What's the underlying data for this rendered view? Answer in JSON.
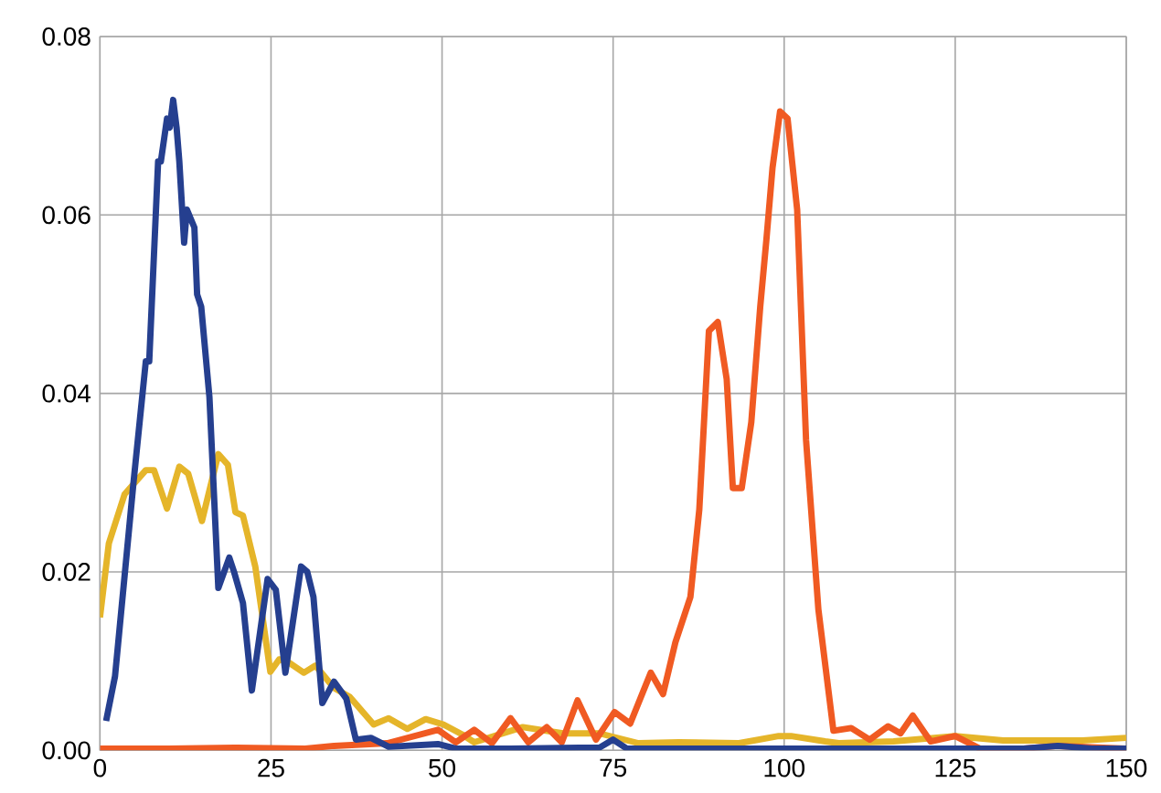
{
  "chart_data": {
    "type": "line",
    "xlim": [
      0,
      150
    ],
    "xticks": [
      0,
      25,
      50,
      75,
      100,
      125,
      150
    ],
    "ylim": [
      0,
      0.08
    ],
    "yticks": [
      {
        "value": 0,
        "label": "0.00"
      },
      {
        "value": 0.02,
        "label": "0.02"
      },
      {
        "value": 0.04,
        "label": "0.04"
      },
      {
        "value": 0.06,
        "label": "0.06"
      },
      {
        "value": 0.08,
        "label": "0.08"
      }
    ],
    "grid": true,
    "legend": false,
    "marker": "none",
    "line_style": "solid",
    "series": [
      {
        "color": "#e5b52a",
        "x": [
          0,
          1.3,
          3.6,
          6.7,
          7.9,
          9.8,
          11.6,
          12.9,
          14.9,
          17.3,
          18.7,
          19.8,
          20.9,
          22.7,
          24.9,
          26.2,
          27.5,
          29.8,
          31.5,
          34.2,
          36.5,
          40,
          42.2,
          44.9,
          47.6,
          50.2,
          52.9,
          54.7,
          61.8,
          67.7,
          73,
          78.7,
          84.6,
          93.4,
          99.2,
          101,
          106,
          108,
          116,
          125,
          132,
          138,
          143.6,
          150
        ],
        "values": [
          0.0149,
          0.0232,
          0.0287,
          0.0314,
          0.0314,
          0.0271,
          0.0318,
          0.031,
          0.0257,
          0.0332,
          0.032,
          0.0267,
          0.0263,
          0.0206,
          0.0088,
          0.0102,
          0.0099,
          0.0087,
          0.0095,
          0.007,
          0.006,
          0.0029,
          0.0036,
          0.0024,
          0.0035,
          0.0029,
          0.0018,
          0.0009,
          0.0026,
          0.0019,
          0.0019,
          0.0008,
          0.0009,
          0.0008,
          0.0016,
          0.0016,
          0.001,
          0.0008,
          0.001,
          0.0016,
          0.0011,
          0.0011,
          0.0011,
          0.0014
        ]
      },
      {
        "color": "#f05a22",
        "x": [
          0,
          10,
          20,
          30,
          34.2,
          42,
          49.4,
          52,
          54.7,
          57.3,
          60,
          62.6,
          65.3,
          67.5,
          69.8,
          72.5,
          75.2,
          77.5,
          80.5,
          82.3,
          84.1,
          86.3,
          87.6,
          89,
          90.3,
          91.6,
          92.5,
          93.8,
          95.2,
          96.5,
          97.4,
          98.3,
          99.4,
          100.5,
          101.9,
          103.2,
          105,
          107.2,
          109.8,
          112.5,
          115.2,
          117,
          118.8,
          121.4,
          125,
          128.6,
          135,
          140,
          150
        ],
        "values": [
          0.0002,
          0.0002,
          0.0003,
          0.0002,
          0.0005,
          0.0008,
          0.0023,
          0.0009,
          0.0023,
          0.0008,
          0.0036,
          0.0009,
          0.0026,
          0.0009,
          0.0056,
          0.0012,
          0.0043,
          0.003,
          0.0087,
          0.0063,
          0.0121,
          0.0172,
          0.027,
          0.047,
          0.048,
          0.0416,
          0.0294,
          0.0294,
          0.0368,
          0.0497,
          0.0572,
          0.0653,
          0.0716,
          0.0708,
          0.0606,
          0.0348,
          0.0158,
          0.0022,
          0.0025,
          0.0012,
          0.0027,
          0.0019,
          0.0039,
          0.001,
          0.0016,
          0.0002,
          0.0002,
          0.0005,
          0.0002
        ]
      },
      {
        "color": "#253f8f",
        "x": [
          0.9,
          2.2,
          4.9,
          6.7,
          7.2,
          8.5,
          8.9,
          9.8,
          10.2,
          10.7,
          11.2,
          11.6,
          12.3,
          12.7,
          13.8,
          14.2,
          14.8,
          16,
          17.3,
          18.9,
          19.6,
          20.9,
          22.2,
          24.5,
          25.7,
          27.1,
          29.4,
          30.3,
          31.2,
          32.5,
          34.2,
          36,
          37.4,
          39.6,
          42.2,
          49.4,
          52,
          60,
          70,
          73,
          75,
          77,
          85,
          100,
          120,
          135,
          140,
          145,
          150
        ],
        "values": [
          0.0033,
          0.0083,
          0.03,
          0.0436,
          0.0436,
          0.066,
          0.066,
          0.0708,
          0.0698,
          0.0729,
          0.0698,
          0.066,
          0.0569,
          0.0606,
          0.0586,
          0.0511,
          0.0497,
          0.0396,
          0.0182,
          0.0216,
          0.02,
          0.0165,
          0.0067,
          0.0192,
          0.018,
          0.0087,
          0.0206,
          0.02,
          0.0172,
          0.0053,
          0.0077,
          0.0058,
          0.0012,
          0.0014,
          0.0004,
          0.0007,
          0.0002,
          0.0002,
          0.0003,
          0.0003,
          0.0012,
          0.0002,
          0.0002,
          0.0002,
          0.0002,
          0.0002,
          0.0005,
          0.0002,
          0.0002
        ]
      }
    ]
  }
}
